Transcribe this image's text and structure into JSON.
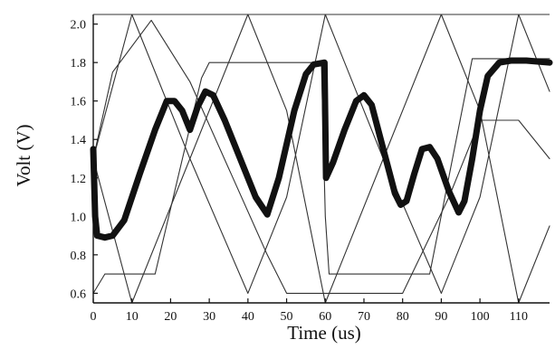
{
  "chart_data": {
    "type": "line",
    "title": "",
    "xlabel": "Time (us)",
    "ylabel": "Volt (V)",
    "xlim": [
      0,
      118
    ],
    "ylim": [
      0.55,
      2.05
    ],
    "xticks": [
      0,
      10,
      20,
      30,
      40,
      50,
      60,
      70,
      80,
      90,
      100,
      110
    ],
    "yticks": [
      0.6,
      0.8,
      1.0,
      1.2,
      1.4,
      1.6,
      1.8,
      2.0
    ],
    "xtick_labels": [
      "0",
      "10",
      "20",
      "30",
      "40",
      "50",
      "60",
      "70",
      "80",
      "90",
      "100",
      "110"
    ],
    "ytick_labels": [
      "0.6",
      "0.8",
      "1.0",
      "1.2",
      "1.4",
      "1.6",
      "1.8",
      "2.0"
    ],
    "grid": false,
    "legend": "none",
    "series": [
      {
        "style": "thick",
        "color": "#111111",
        "x": [
          0,
          0.5,
          1,
          3,
          5,
          8,
          12,
          16,
          19,
          21,
          23,
          25,
          27,
          29,
          31,
          34,
          38,
          42,
          45,
          48,
          52,
          55,
          57,
          59.8,
          60.2,
          62,
          65,
          68,
          70,
          72,
          75,
          78,
          79.5,
          81,
          83,
          85,
          87,
          89,
          92,
          94.5,
          96,
          98,
          100,
          102,
          105,
          108,
          112,
          118
        ],
        "y": [
          1.35,
          1.0,
          0.9,
          0.89,
          0.9,
          0.98,
          1.22,
          1.45,
          1.6,
          1.6,
          1.55,
          1.45,
          1.57,
          1.65,
          1.63,
          1.5,
          1.3,
          1.1,
          1.01,
          1.2,
          1.55,
          1.74,
          1.79,
          1.8,
          1.2,
          1.28,
          1.45,
          1.6,
          1.63,
          1.58,
          1.35,
          1.12,
          1.06,
          1.08,
          1.22,
          1.35,
          1.36,
          1.3,
          1.13,
          1.02,
          1.08,
          1.3,
          1.55,
          1.73,
          1.8,
          1.81,
          1.81,
          1.8
        ]
      },
      {
        "style": "thin",
        "color": "#333333",
        "x": [
          0,
          10,
          25,
          40,
          50,
          60,
          75,
          90,
          100,
          110,
          118
        ],
        "y": [
          1.3,
          2.05,
          1.3,
          0.6,
          1.1,
          2.05,
          1.3,
          0.6,
          1.1,
          2.05,
          1.65
        ]
      },
      {
        "style": "thin",
        "color": "#333333",
        "x": [
          0,
          10,
          25,
          40,
          50,
          60,
          75,
          90,
          100,
          110,
          118
        ],
        "y": [
          1.3,
          0.55,
          1.3,
          2.05,
          1.55,
          0.55,
          1.3,
          2.05,
          1.55,
          0.55,
          0.95
        ]
      },
      {
        "style": "thin",
        "color": "#333333",
        "x": [
          0,
          3,
          6,
          16,
          28,
          30,
          59,
          60,
          61,
          77,
          87,
          98,
          118
        ],
        "y": [
          0.6,
          0.7,
          0.7,
          0.7,
          1.72,
          1.8,
          1.8,
          1.0,
          0.7,
          0.7,
          0.7,
          1.82,
          1.82
        ]
      },
      {
        "style": "thin",
        "color": "#333333",
        "x": [
          0,
          5,
          15,
          25,
          35,
          45,
          50,
          60,
          70,
          80,
          92,
          100,
          110,
          118
        ],
        "y": [
          1.3,
          1.75,
          2.02,
          1.7,
          1.25,
          0.8,
          0.6,
          0.6,
          0.6,
          0.6,
          1.1,
          1.5,
          1.5,
          1.3
        ]
      }
    ]
  }
}
